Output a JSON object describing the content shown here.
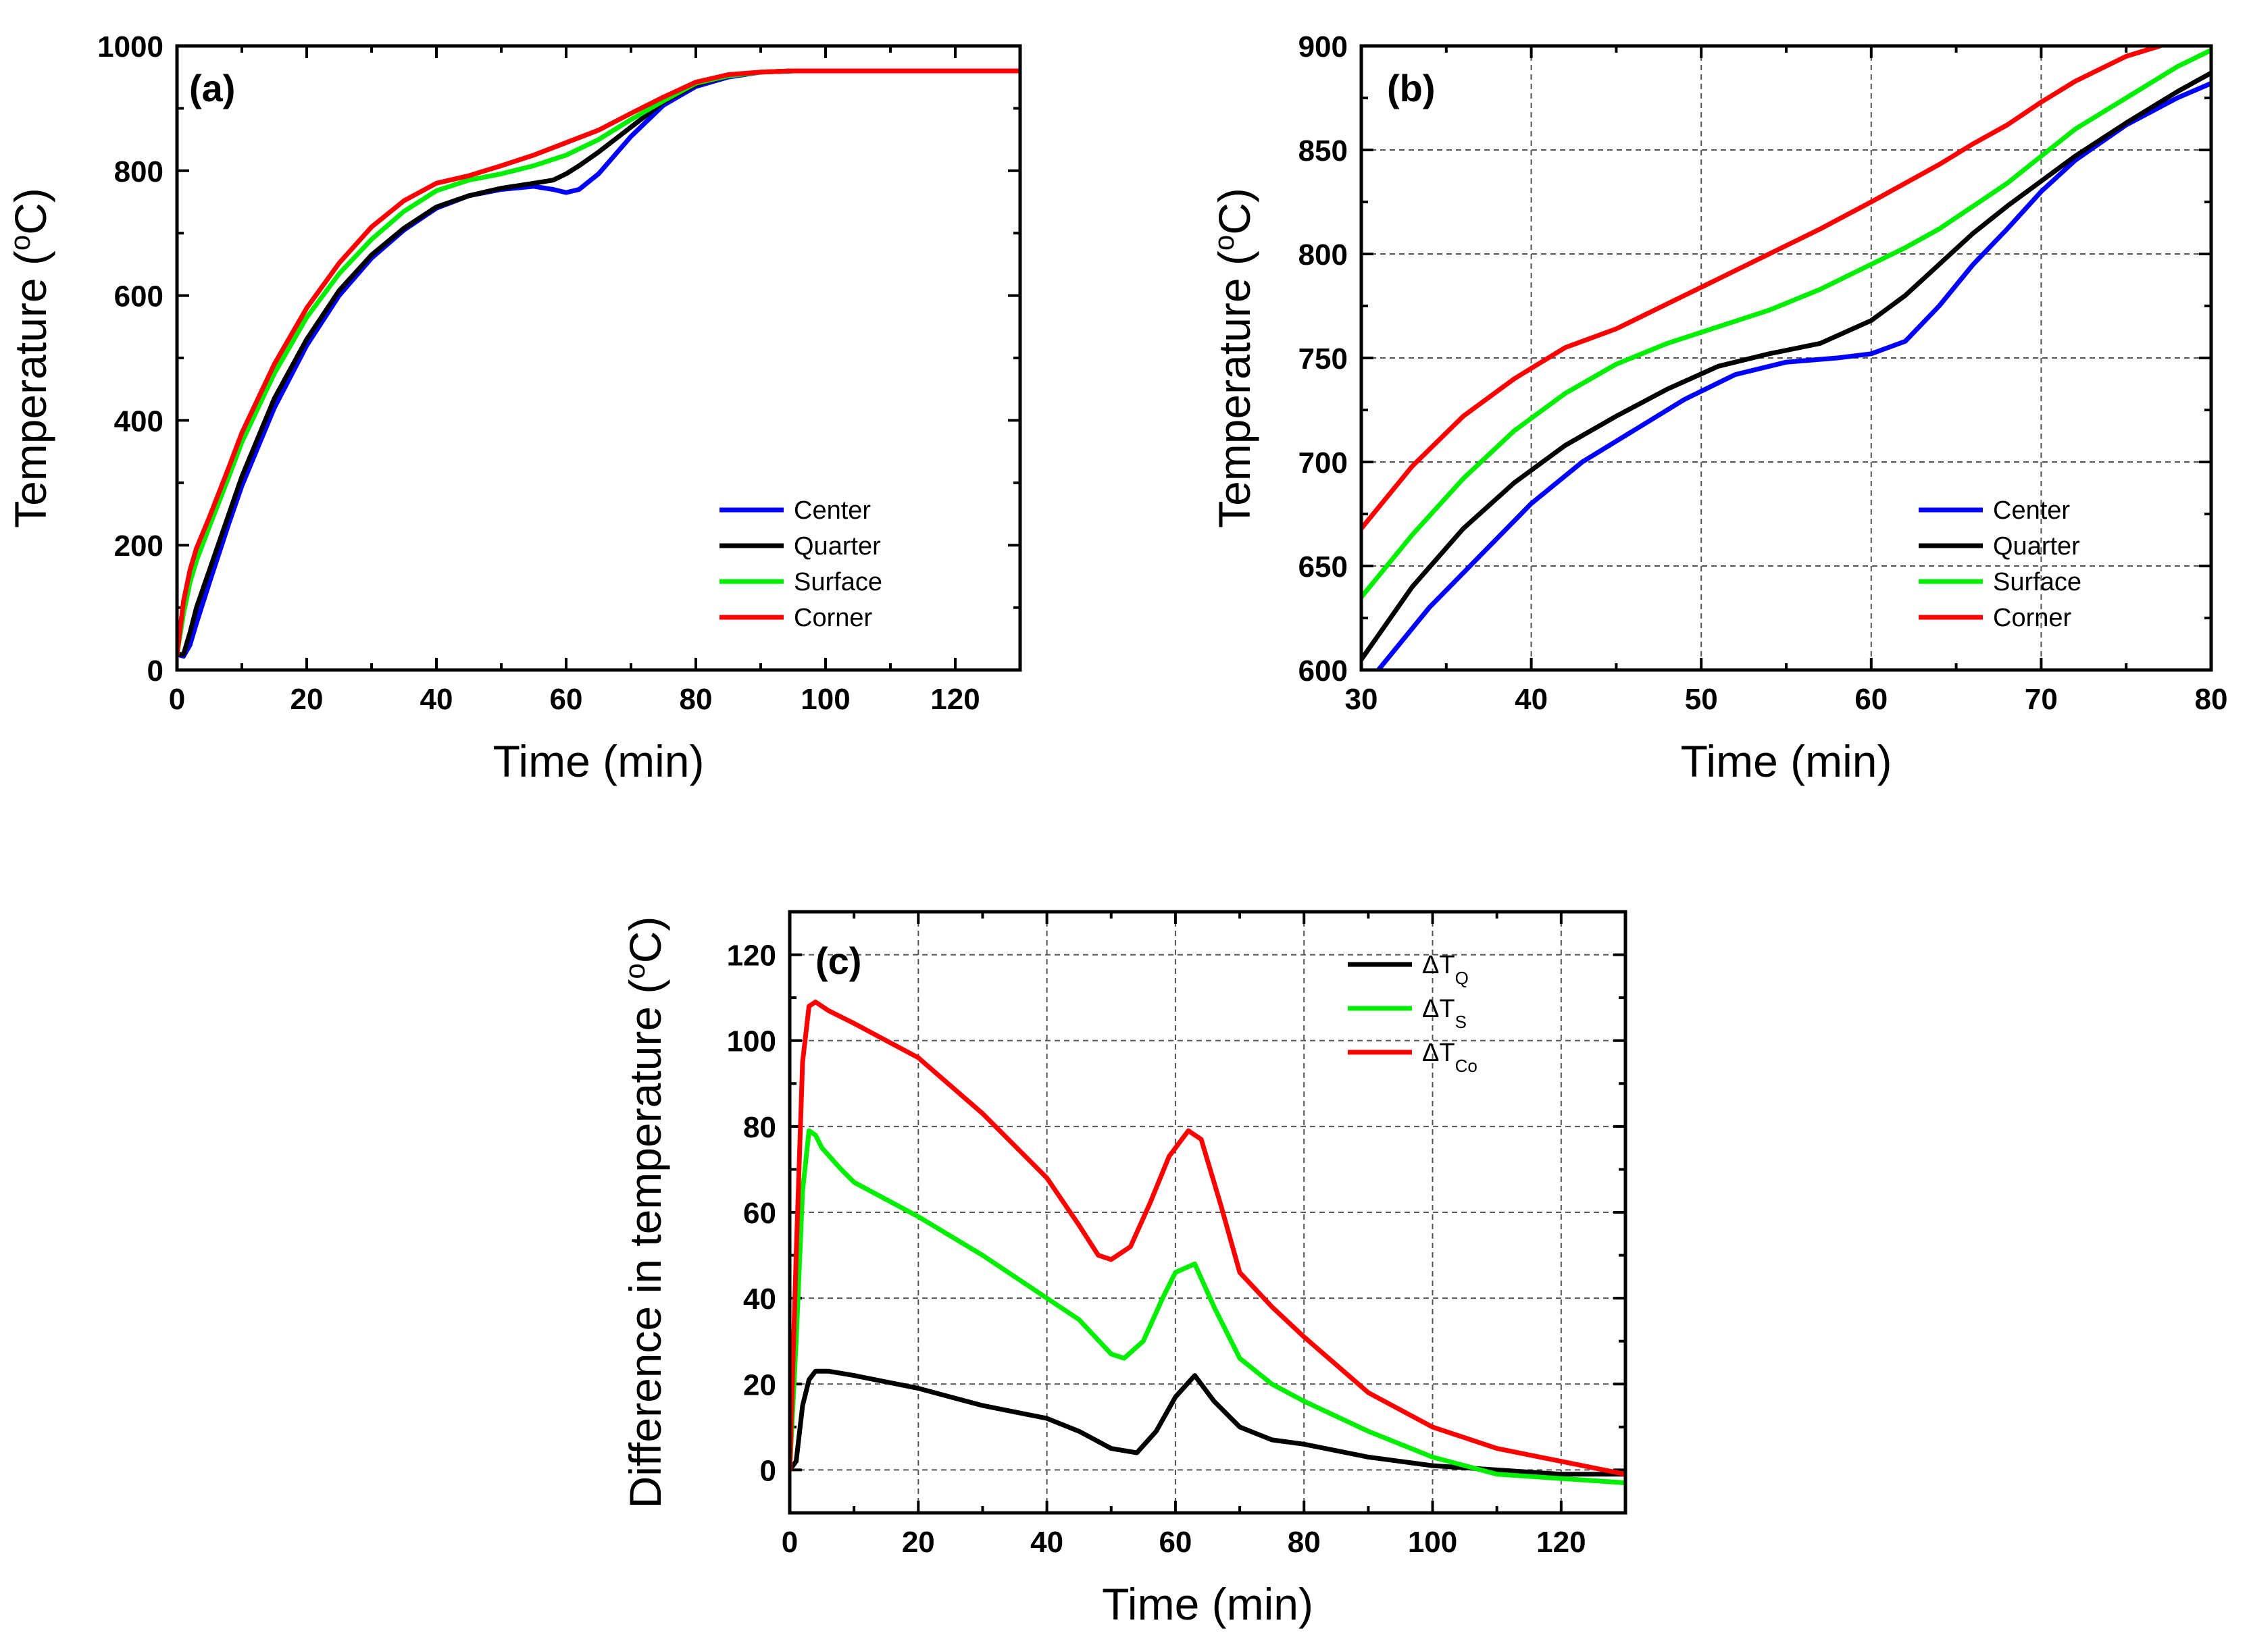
{
  "colors": {
    "blue": "#0000ff",
    "black": "#000000",
    "green": "#00ee00",
    "red": "#ff0000"
  },
  "chart_data": [
    {
      "id": "a",
      "type": "line",
      "panel_label": "(a)",
      "xlabel": "Time (min)",
      "ylabel": "Temperature (°C)",
      "ylabel_main": "Temperature (",
      "ylabel_sup": "o",
      "ylabel_tail": "C)",
      "xlim": [
        0,
        130
      ],
      "ylim": [
        0,
        1000
      ],
      "xticks": [
        0,
        20,
        40,
        60,
        80,
        100,
        120
      ],
      "yticks": [
        0,
        200,
        400,
        600,
        800,
        1000
      ],
      "grid": false,
      "legend": "bottom-right",
      "series": [
        {
          "name": "Center",
          "color": "#0000ff",
          "x": [
            0,
            1,
            2,
            3,
            5,
            8,
            10,
            15,
            20,
            25,
            30,
            35,
            40,
            45,
            50,
            55,
            58,
            60,
            62,
            65,
            70,
            75,
            80,
            85,
            90,
            95,
            100,
            105,
            110,
            115,
            120,
            125,
            130
          ],
          "y": [
            25,
            22,
            40,
            75,
            140,
            235,
            295,
            420,
            520,
            600,
            660,
            705,
            740,
            760,
            770,
            775,
            770,
            765,
            770,
            795,
            855,
            905,
            935,
            950,
            958,
            960,
            960,
            960,
            960,
            960,
            960,
            960,
            960
          ]
        },
        {
          "name": "Quarter",
          "color": "#000000",
          "x": [
            0,
            1,
            2,
            3,
            5,
            8,
            10,
            15,
            20,
            25,
            30,
            35,
            40,
            45,
            50,
            55,
            58,
            60,
            62,
            65,
            70,
            75,
            80,
            85,
            90,
            95,
            100,
            105,
            110,
            115,
            120,
            125,
            130
          ],
          "y": [
            25,
            25,
            60,
            100,
            160,
            250,
            310,
            435,
            530,
            608,
            665,
            708,
            742,
            760,
            772,
            780,
            785,
            795,
            808,
            830,
            870,
            910,
            938,
            952,
            958,
            960,
            960,
            960,
            960,
            960,
            960,
            960,
            960
          ]
        },
        {
          "name": "Surface",
          "color": "#00ee00",
          "x": [
            0,
            1,
            2,
            3,
            5,
            8,
            10,
            15,
            20,
            25,
            30,
            35,
            40,
            45,
            50,
            55,
            60,
            65,
            70,
            75,
            80,
            85,
            90,
            95,
            100,
            105,
            110,
            115,
            120,
            125,
            130
          ],
          "y": [
            25,
            90,
            140,
            175,
            230,
            310,
            365,
            475,
            565,
            635,
            690,
            735,
            768,
            785,
            795,
            808,
            825,
            850,
            882,
            912,
            940,
            952,
            958,
            960,
            960,
            960,
            960,
            960,
            960,
            960,
            960
          ]
        },
        {
          "name": "Corner",
          "color": "#ff0000",
          "x": [
            0,
            1,
            2,
            3,
            5,
            8,
            10,
            15,
            20,
            25,
            30,
            35,
            40,
            45,
            50,
            55,
            60,
            65,
            70,
            75,
            80,
            85,
            90,
            95,
            100,
            105,
            110,
            115,
            120,
            125,
            130
          ],
          "y": [
            25,
            110,
            160,
            195,
            245,
            325,
            380,
            490,
            580,
            652,
            710,
            752,
            780,
            792,
            808,
            825,
            845,
            865,
            892,
            918,
            942,
            954,
            958,
            960,
            960,
            960,
            960,
            960,
            960,
            960,
            960
          ]
        }
      ]
    },
    {
      "id": "b",
      "type": "line",
      "panel_label": "(b)",
      "xlabel": "Time (min)",
      "ylabel": "Temperature (°C)",
      "ylabel_main": "Temperature (",
      "ylabel_sup": "o",
      "ylabel_tail": "C)",
      "xlim": [
        30,
        80
      ],
      "ylim": [
        600,
        900
      ],
      "xticks": [
        30,
        40,
        50,
        60,
        70,
        80
      ],
      "yticks": [
        600,
        650,
        700,
        750,
        800,
        850,
        900
      ],
      "grid": true,
      "legend": "bottom-right",
      "series": [
        {
          "name": "Center",
          "color": "#0000ff",
          "x": [
            31,
            34,
            37,
            40,
            43,
            46,
            49,
            52,
            55,
            58,
            60,
            62,
            64,
            66,
            68,
            70,
            72,
            75,
            78,
            80
          ],
          "y": [
            600,
            630,
            655,
            680,
            700,
            715,
            730,
            742,
            748,
            750,
            752,
            758,
            775,
            795,
            812,
            830,
            845,
            862,
            875,
            882
          ]
        },
        {
          "name": "Quarter",
          "color": "#000000",
          "x": [
            30,
            33,
            36,
            39,
            42,
            45,
            48,
            51,
            54,
            57,
            60,
            62,
            64,
            66,
            68,
            70,
            72,
            75,
            78,
            80
          ],
          "y": [
            605,
            640,
            668,
            690,
            708,
            722,
            735,
            746,
            752,
            757,
            768,
            780,
            795,
            810,
            823,
            835,
            847,
            863,
            878,
            887
          ]
        },
        {
          "name": "Surface",
          "color": "#00ee00",
          "x": [
            30,
            33,
            36,
            39,
            42,
            45,
            48,
            51,
            54,
            57,
            60,
            62,
            64,
            66,
            68,
            70,
            72,
            75,
            78,
            80
          ],
          "y": [
            635,
            665,
            692,
            715,
            733,
            747,
            757,
            765,
            773,
            783,
            795,
            803,
            812,
            823,
            834,
            847,
            860,
            875,
            890,
            898
          ]
        },
        {
          "name": "Corner",
          "color": "#ff0000",
          "x": [
            30,
            33,
            36,
            39,
            42,
            45,
            48,
            51,
            54,
            57,
            60,
            62,
            64,
            66,
            68,
            70,
            72,
            75,
            77
          ],
          "y": [
            668,
            698,
            722,
            740,
            755,
            764,
            776,
            788,
            800,
            812,
            825,
            834,
            843,
            853,
            862,
            873,
            883,
            895,
            900
          ]
        }
      ]
    },
    {
      "id": "c",
      "type": "line",
      "panel_label": "(c)",
      "xlabel": "Time (min)",
      "ylabel": "Difference in temperature (°C)",
      "ylabel_main": "Difference in temperature (",
      "ylabel_sup": "o",
      "ylabel_tail": "C)",
      "xlim": [
        0,
        130
      ],
      "ylim": [
        -10,
        130
      ],
      "xticks": [
        0,
        20,
        40,
        60,
        80,
        100,
        120
      ],
      "yticks": [
        0,
        20,
        40,
        60,
        80,
        100,
        120
      ],
      "grid": true,
      "legend": "top-right",
      "series": [
        {
          "name": "ΔT",
          "sub": "Q",
          "color": "#000000",
          "x": [
            0,
            1,
            2,
            3,
            4,
            5,
            6,
            10,
            20,
            30,
            40,
            45,
            50,
            54,
            57,
            60,
            63,
            66,
            70,
            75,
            80,
            90,
            100,
            110,
            120,
            130
          ],
          "y": [
            0,
            2,
            15,
            21,
            23,
            23,
            23,
            22,
            19,
            15,
            12,
            9,
            5,
            4,
            9,
            17,
            22,
            16,
            10,
            7,
            6,
            3,
            1,
            0,
            -1,
            -1
          ]
        },
        {
          "name": "ΔT",
          "sub": "S",
          "color": "#00ee00",
          "x": [
            0,
            1,
            2,
            3,
            4,
            5,
            8,
            10,
            20,
            30,
            40,
            45,
            50,
            52,
            55,
            58,
            60,
            63,
            66,
            70,
            75,
            80,
            90,
            100,
            110,
            120,
            130
          ],
          "y": [
            0,
            30,
            65,
            79,
            78,
            75,
            70,
            67,
            59,
            50,
            40,
            35,
            27,
            26,
            30,
            40,
            46,
            48,
            38,
            26,
            20,
            16,
            9,
            3,
            -1,
            -2,
            -3
          ]
        },
        {
          "name": "ΔT",
          "sub": "Co",
          "color": "#ff0000",
          "x": [
            0,
            1,
            2,
            3,
            4,
            5,
            6,
            10,
            20,
            30,
            40,
            45,
            48,
            50,
            53,
            56,
            59,
            62,
            64,
            67,
            70,
            75,
            80,
            90,
            100,
            110,
            120,
            130
          ],
          "y": [
            0,
            50,
            95,
            108,
            109,
            108,
            107,
            104,
            96,
            83,
            68,
            57,
            50,
            49,
            52,
            62,
            73,
            79,
            77,
            62,
            46,
            38,
            31,
            18,
            10,
            5,
            2,
            -1
          ]
        }
      ]
    }
  ]
}
